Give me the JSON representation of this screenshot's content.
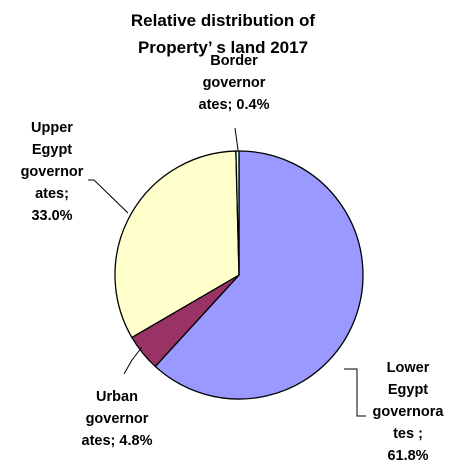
{
  "chart_data": {
    "type": "pie",
    "title_lines": [
      "Relative distribution of",
      "Property’ s land 2017"
    ],
    "categories": [
      "Lower Egypt governorates",
      "Urban governorates",
      "Upper Egypt governorates",
      "Border governorates"
    ],
    "values": [
      61.8,
      4.8,
      33.0,
      0.4
    ],
    "colors": [
      "#9999ff",
      "#993366",
      "#ffffcc",
      "#ccffff"
    ],
    "labels": [
      [
        "Lower",
        "Egypt",
        "governora",
        "tes ;",
        "61.8%"
      ],
      [
        "Urban",
        "governor",
        "ates; 4.8%"
      ],
      [
        "Upper",
        "Egypt",
        "governor",
        "ates;",
        "33.0%"
      ],
      [
        "Border",
        "governor",
        "ates; 0.4%"
      ]
    ],
    "legend": "none"
  }
}
